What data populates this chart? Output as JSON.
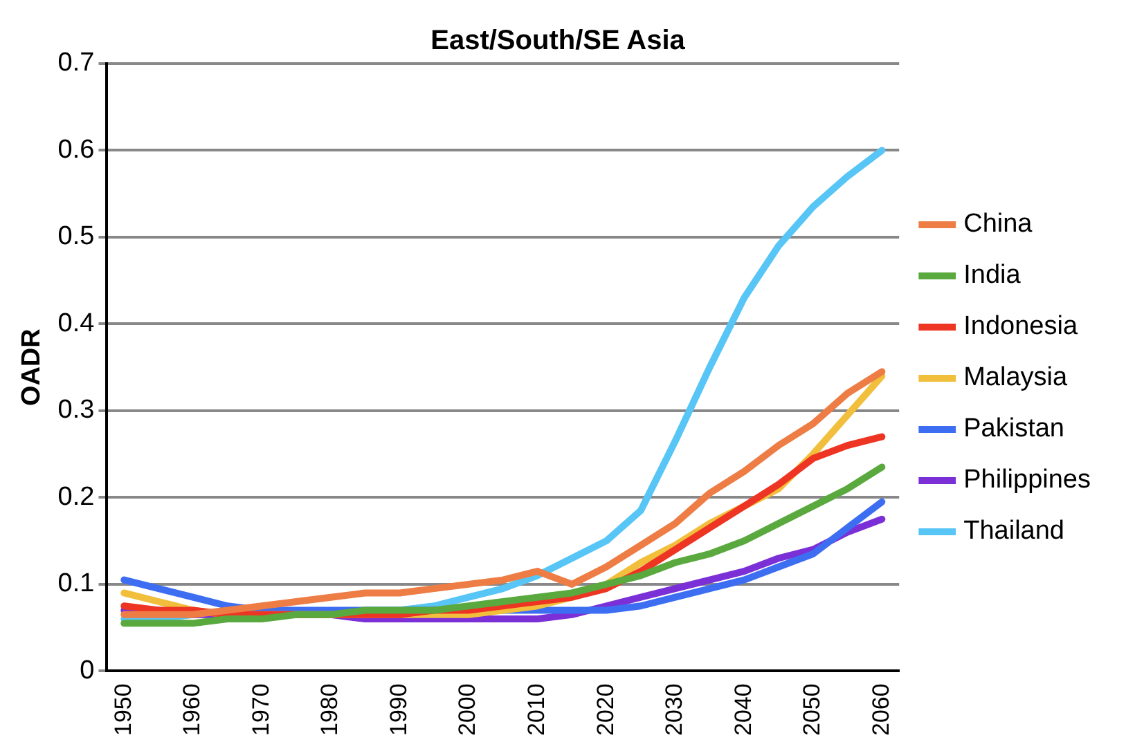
{
  "chart_data": {
    "type": "line",
    "title": "East/South/SE Asia",
    "ylabel": "OADR",
    "categories": [
      "1950",
      null,
      "1960",
      null,
      "1970",
      null,
      "1980",
      null,
      "1990",
      null,
      "2000",
      null,
      "2010",
      null,
      "2020",
      null,
      "2030",
      null,
      "2040",
      null,
      "2050",
      null,
      "2060"
    ],
    "series": [
      {
        "name": "China",
        "color": "#ed7d45",
        "values": [
          0.065,
          0.065,
          0.065,
          0.07,
          0.075,
          0.08,
          0.085,
          0.09,
          0.09,
          0.095,
          0.1,
          0.105,
          0.115,
          0.1,
          0.12,
          0.145,
          0.17,
          0.205,
          0.23,
          0.26,
          0.285,
          0.32,
          0.345
        ]
      },
      {
        "name": "India",
        "color": "#5aa93f",
        "values": [
          0.055,
          0.055,
          0.055,
          0.06,
          0.06,
          0.065,
          0.065,
          0.07,
          0.07,
          0.07,
          0.075,
          0.08,
          0.085,
          0.09,
          0.1,
          0.11,
          0.125,
          0.135,
          0.15,
          0.17,
          0.19,
          0.21,
          0.235
        ]
      },
      {
        "name": "Indonesia",
        "color": "#ee3524",
        "values": [
          0.075,
          0.07,
          0.07,
          0.065,
          0.065,
          0.065,
          0.065,
          0.065,
          0.065,
          0.07,
          0.07,
          0.075,
          0.08,
          0.085,
          0.095,
          0.115,
          0.14,
          0.165,
          0.19,
          0.215,
          0.245,
          0.26,
          0.27
        ]
      },
      {
        "name": "Malaysia",
        "color": "#f2bf3c",
        "values": [
          0.09,
          0.08,
          0.07,
          0.065,
          0.065,
          0.065,
          0.065,
          0.065,
          0.065,
          0.065,
          0.065,
          0.07,
          0.075,
          0.085,
          0.1,
          0.125,
          0.145,
          0.17,
          0.19,
          0.21,
          0.25,
          0.295,
          0.34
        ]
      },
      {
        "name": "Pakistan",
        "color": "#3d6ef2",
        "values": [
          0.105,
          0.095,
          0.085,
          0.075,
          0.07,
          0.07,
          0.07,
          0.07,
          0.07,
          0.07,
          0.07,
          0.07,
          0.07,
          0.07,
          0.07,
          0.075,
          0.085,
          0.095,
          0.105,
          0.12,
          0.135,
          0.165,
          0.195
        ]
      },
      {
        "name": "Philippines",
        "color": "#7b2fd6",
        "values": [
          0.07,
          0.07,
          0.065,
          0.065,
          0.065,
          0.065,
          0.065,
          0.06,
          0.06,
          0.06,
          0.06,
          0.06,
          0.06,
          0.065,
          0.075,
          0.085,
          0.095,
          0.105,
          0.115,
          0.13,
          0.14,
          0.16,
          0.175
        ]
      },
      {
        "name": "Thailand",
        "color": "#57c5f5",
        "values": [
          0.06,
          0.06,
          0.065,
          0.065,
          0.065,
          0.065,
          0.065,
          0.07,
          0.07,
          0.075,
          0.085,
          0.095,
          0.11,
          0.13,
          0.15,
          0.185,
          0.265,
          0.35,
          0.43,
          0.49,
          0.535,
          0.57,
          0.6
        ]
      }
    ],
    "ylim": [
      0,
      0.7
    ],
    "yticks": [
      0,
      0.1,
      0.2,
      0.3,
      0.4,
      0.5,
      0.6,
      0.7
    ],
    "grid": "y",
    "legend": "right",
    "marker": "none",
    "line_style": "solid"
  }
}
